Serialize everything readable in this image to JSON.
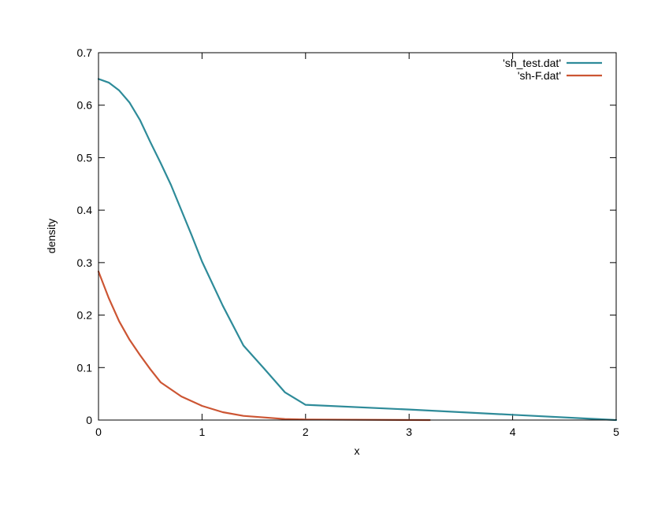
{
  "chart_data": {
    "type": "line",
    "title": "",
    "xlabel": "x",
    "ylabel": "density",
    "xlim": [
      0,
      5
    ],
    "ylim": [
      0,
      0.7
    ],
    "xticks": [
      "0",
      "1",
      "2",
      "3",
      "4",
      "5"
    ],
    "yticks": [
      "0",
      "0.1",
      "0.2",
      "0.3",
      "0.4",
      "0.5",
      "0.6",
      "0.7"
    ],
    "grid": false,
    "legend_position": "top-right",
    "series": [
      {
        "name": "'sh_test.dat'",
        "color": "#2e8b99",
        "x": [
          0,
          0.1,
          0.2,
          0.3,
          0.4,
          0.5,
          0.6,
          0.7,
          0.8,
          0.9,
          1.0,
          1.2,
          1.4,
          1.6,
          1.8,
          2.0,
          3.0,
          4.0,
          5.0
        ],
        "y": [
          0.65,
          0.643,
          0.628,
          0.605,
          0.572,
          0.53,
          0.49,
          0.448,
          0.4,
          0.352,
          0.302,
          0.218,
          0.142,
          0.098,
          0.053,
          0.029,
          0.02,
          0.01,
          0.0
        ]
      },
      {
        "name": "'sh-F.dat'",
        "color": "#cc5533",
        "x": [
          0,
          0.1,
          0.2,
          0.3,
          0.4,
          0.5,
          0.6,
          0.8,
          1.0,
          1.2,
          1.4,
          1.6,
          1.8,
          2.0,
          3.2
        ],
        "y": [
          0.283,
          0.232,
          0.188,
          0.153,
          0.124,
          0.097,
          0.072,
          0.045,
          0.027,
          0.015,
          0.008,
          0.005,
          0.002,
          0.001,
          0.0
        ]
      }
    ]
  }
}
